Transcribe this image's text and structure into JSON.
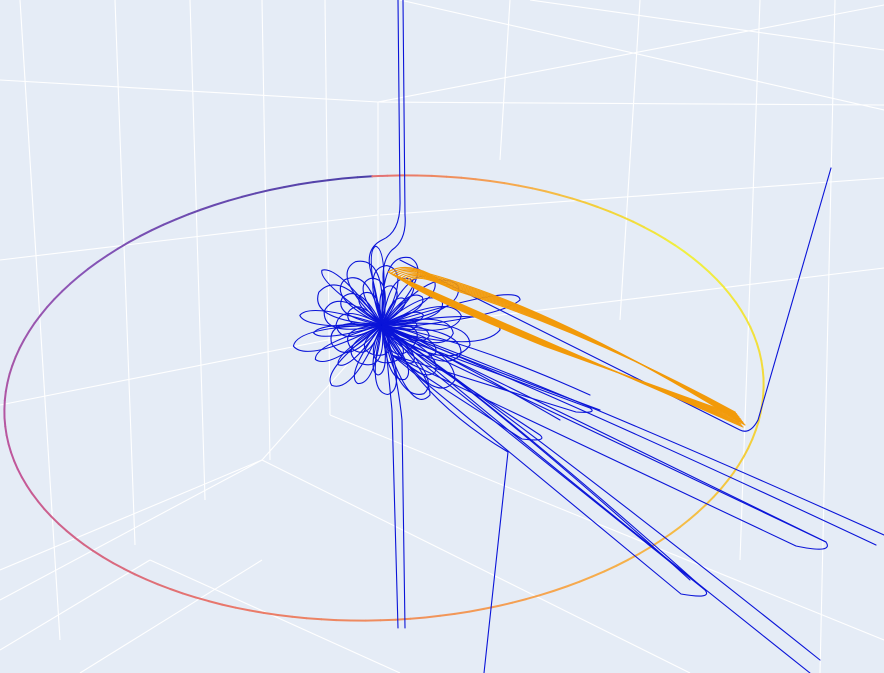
{
  "chart_data": {
    "type": "line",
    "scene": "3d",
    "grid": true,
    "background_color": "#e5ecf6",
    "grid_color": "#ffffff",
    "legend": "none",
    "title": "",
    "series": [
      {
        "role": "ring",
        "colorscale": [
          "#4b3fa8",
          "#8a55b6",
          "#c2579a",
          "#e9776b",
          "#f6a64f",
          "#f3d23a",
          "#f0f040"
        ]
      },
      {
        "role": "field-lines",
        "color": "#0a14d8"
      },
      {
        "role": "orbit-trajectories",
        "color": "#f29a0a"
      }
    ]
  }
}
